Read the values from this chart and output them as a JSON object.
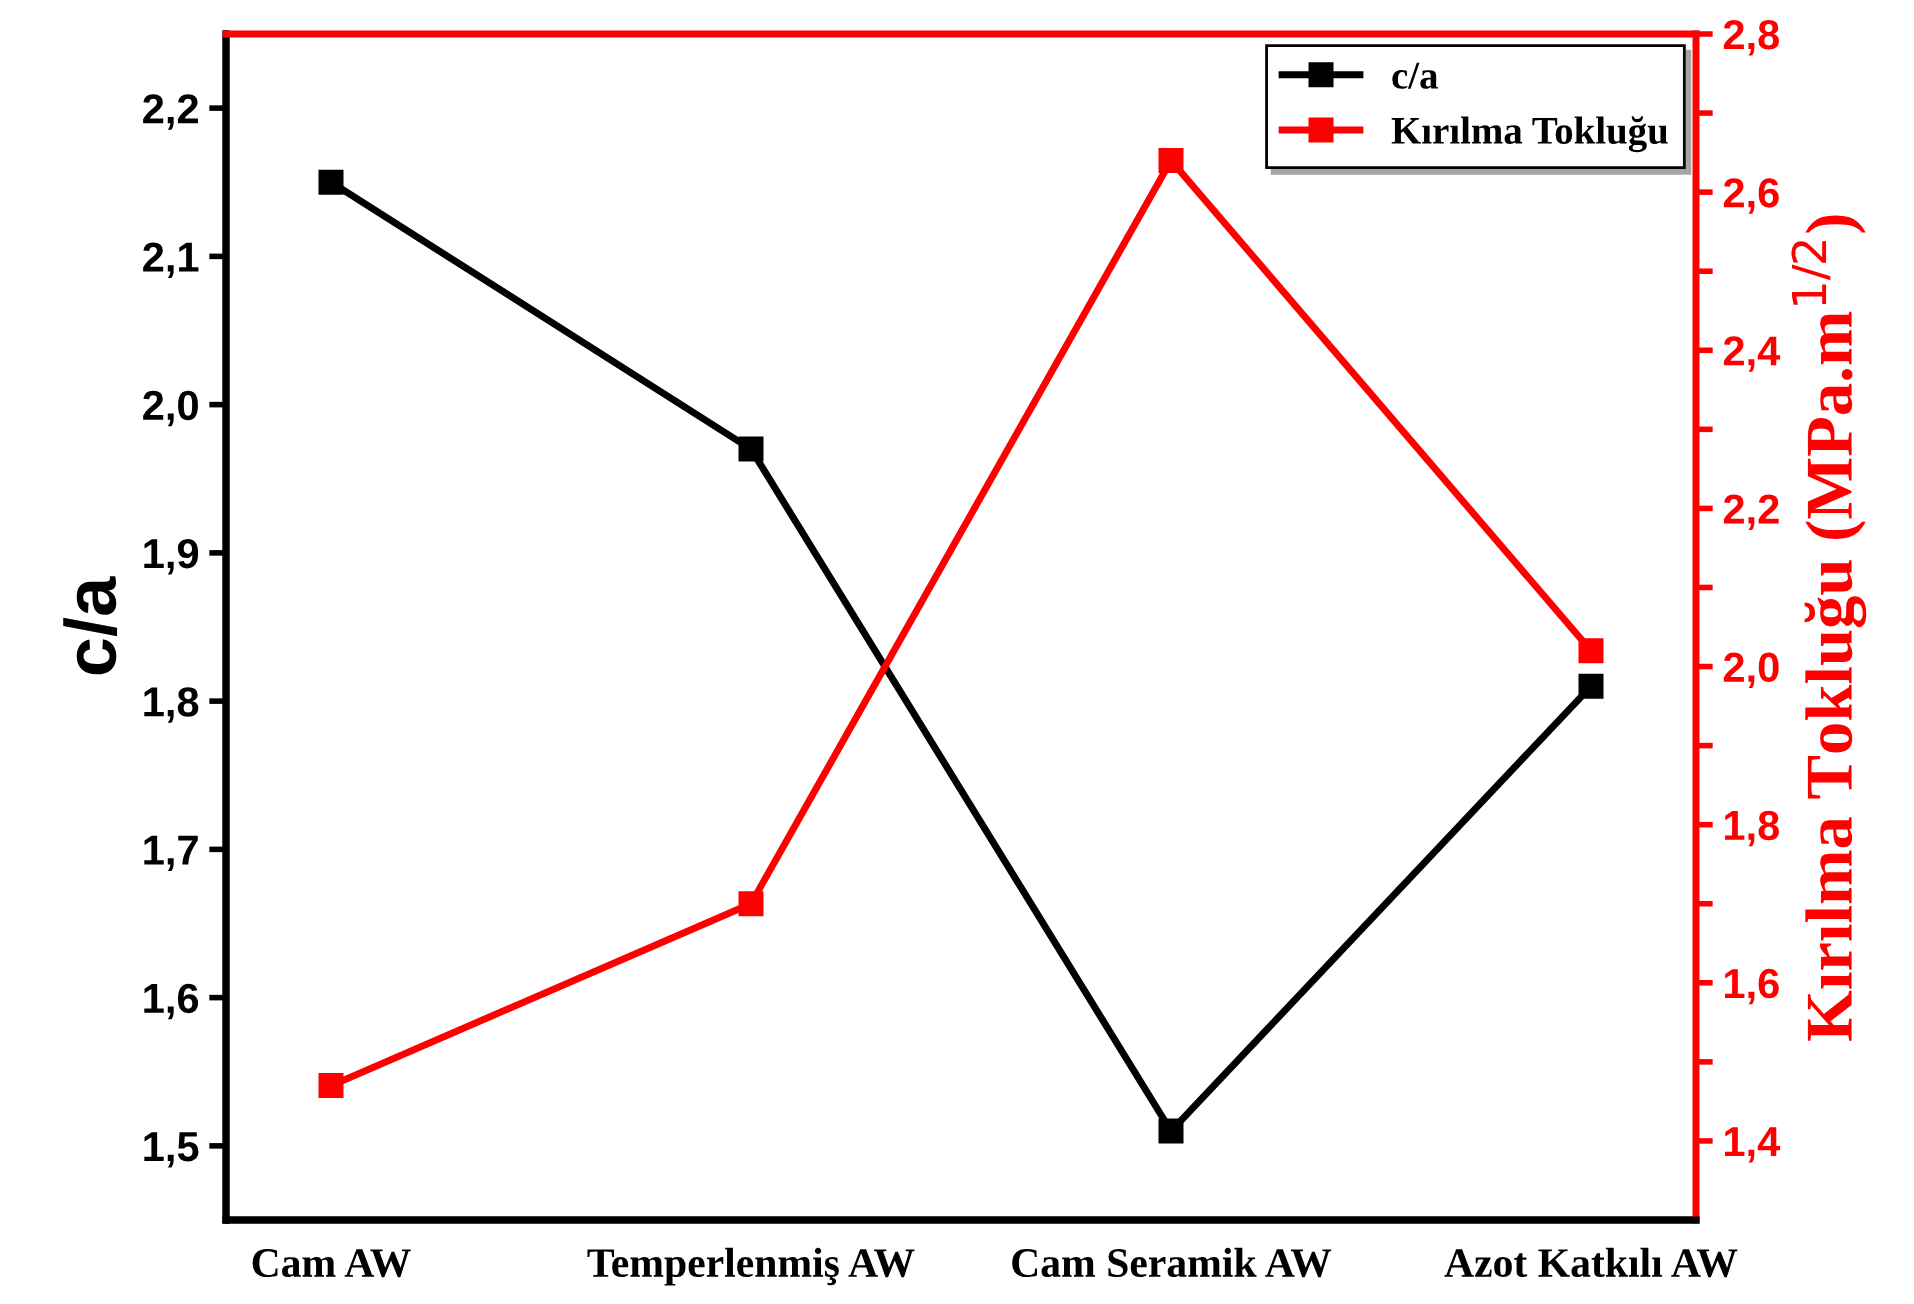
{
  "chart_data": {
    "type": "line",
    "categories": [
      "Cam AW",
      "Temperlenmiş AW",
      "Cam Seramik AW",
      "Azot Katkılı AW"
    ],
    "ylabel": "c/a",
    "y2label": "Kırılma Tokluğu (MPa.m$^{1/2}$)",
    "series": [
      {
        "name": "c/a",
        "color": "#000000",
        "values": [
          2.15,
          1.97,
          1.51,
          1.81
        ]
      },
      {
        "name": "Kırılma Tokluğu",
        "color": "#ff0000",
        "axis": "y2",
        "values": [
          1.47,
          1.7,
          2.64,
          2.02
        ]
      }
    ],
    "ylim": [
      1.45,
      2.25
    ],
    "yticks": [
      {
        "value": 1.5,
        "label": "1,5"
      },
      {
        "value": 1.6,
        "label": "1,6"
      },
      {
        "value": 1.7,
        "label": "1,7"
      },
      {
        "value": 1.8,
        "label": "1,8"
      },
      {
        "value": 1.9,
        "label": "1,9"
      },
      {
        "value": 2.0,
        "label": "2,0"
      },
      {
        "value": 2.1,
        "label": "2,1"
      },
      {
        "value": 2.2,
        "label": "2,2"
      }
    ],
    "y2lim": [
      1.3,
      2.8
    ],
    "y2ticks": [
      {
        "value": 1.4,
        "label": "1,4"
      },
      {
        "value": 1.5,
        "label": null
      },
      {
        "value": 1.6,
        "label": "1,6"
      },
      {
        "value": 1.7,
        "label": null
      },
      {
        "value": 1.8,
        "label": "1,8"
      },
      {
        "value": 1.9,
        "label": null
      },
      {
        "value": 2.0,
        "label": "2,0"
      },
      {
        "value": 2.1,
        "label": null
      },
      {
        "value": 2.2,
        "label": "2,2"
      },
      {
        "value": 2.3,
        "label": null
      },
      {
        "value": 2.4,
        "label": "2,4"
      },
      {
        "value": 2.5,
        "label": null
      },
      {
        "value": 2.6,
        "label": "2,6"
      },
      {
        "value": 2.7,
        "label": null
      },
      {
        "value": 2.8,
        "label": "2,8"
      }
    ],
    "marker": "square",
    "line_style": "solid",
    "grid": false,
    "legend": "top right"
  }
}
